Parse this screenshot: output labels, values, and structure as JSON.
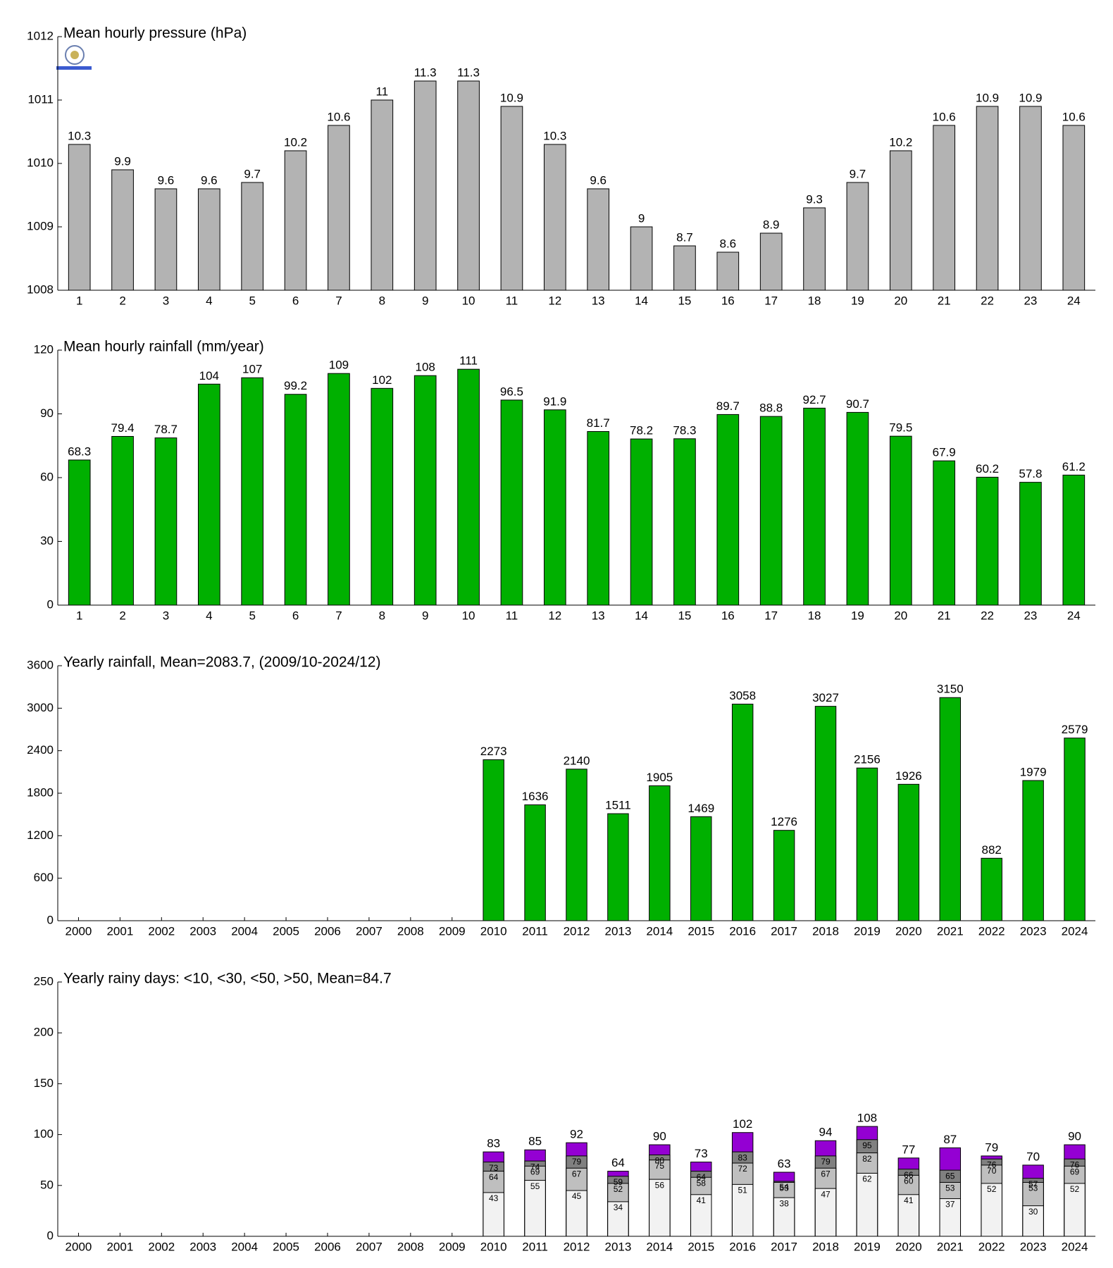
{
  "chart_data": [
    {
      "type": "bar",
      "title": "Mean hourly pressure (hPa)",
      "categories": [
        "1",
        "2",
        "3",
        "4",
        "5",
        "6",
        "7",
        "8",
        "9",
        "10",
        "11",
        "12",
        "13",
        "14",
        "15",
        "16",
        "17",
        "18",
        "19",
        "20",
        "21",
        "22",
        "23",
        "24"
      ],
      "values": [
        1010.3,
        1009.9,
        1009.6,
        1009.6,
        1009.7,
        1010.2,
        1010.6,
        1011,
        1011.3,
        1011.3,
        1010.9,
        1010.3,
        1009.6,
        1009,
        1008.7,
        1008.6,
        1008.9,
        1009.3,
        1009.7,
        1010.2,
        1010.6,
        1010.9,
        1010.9,
        1010.6
      ],
      "value_labels": [
        "10.3",
        "9.9",
        "9.6",
        "9.6",
        "9.7",
        "10.2",
        "10.6",
        "11",
        "11.3",
        "11.3",
        "10.9",
        "10.3",
        "9.6",
        "9",
        "8.7",
        "8.6",
        "8.9",
        "9.3",
        "9.7",
        "10.2",
        "10.6",
        "10.9",
        "10.9",
        "10.6"
      ],
      "color": "#b3b3b3",
      "ylim": [
        1008,
        1012
      ],
      "yticks": [
        1008,
        1009,
        1010,
        1011,
        1012
      ]
    },
    {
      "type": "bar",
      "title": "Mean hourly rainfall (mm/year)",
      "categories": [
        "1",
        "2",
        "3",
        "4",
        "5",
        "6",
        "7",
        "8",
        "9",
        "10",
        "11",
        "12",
        "13",
        "14",
        "15",
        "16",
        "17",
        "18",
        "19",
        "20",
        "21",
        "22",
        "23",
        "24"
      ],
      "values": [
        68.3,
        79.4,
        78.7,
        104,
        107,
        99.2,
        109,
        102,
        108,
        111,
        96.5,
        91.9,
        81.7,
        78.2,
        78.3,
        89.7,
        88.8,
        92.7,
        90.7,
        79.5,
        67.9,
        60.2,
        57.8,
        61.2
      ],
      "color": "#00b000",
      "ylim": [
        0,
        120
      ],
      "yticks": [
        0,
        30,
        60,
        90,
        120
      ]
    },
    {
      "type": "bar",
      "title": "Yearly rainfall, Mean=2083.7, (2009/10-2024/12)",
      "categories": [
        "2000",
        "2001",
        "2002",
        "2003",
        "2004",
        "2005",
        "2006",
        "2007",
        "2008",
        "2009",
        "2010",
        "2011",
        "2012",
        "2013",
        "2014",
        "2015",
        "2016",
        "2017",
        "2018",
        "2019",
        "2020",
        "2021",
        "2022",
        "2023",
        "2024"
      ],
      "values": [
        null,
        null,
        null,
        null,
        null,
        null,
        null,
        null,
        null,
        null,
        2273,
        1636,
        2140,
        1511,
        1905,
        1469,
        3058,
        1276,
        3027,
        2156,
        1926,
        3150,
        882,
        1979,
        2579
      ],
      "color": "#00b000",
      "ylim": [
        0,
        3600
      ],
      "yticks": [
        0,
        600,
        1200,
        1800,
        2400,
        3000,
        3600
      ]
    },
    {
      "type": "overlap_bar",
      "title": "Yearly rainy days: <10, <30, <50, >50, Mean=84.7",
      "categories": [
        "2000",
        "2001",
        "2002",
        "2003",
        "2004",
        "2005",
        "2006",
        "2007",
        "2008",
        "2009",
        "2010",
        "2011",
        "2012",
        "2013",
        "2014",
        "2015",
        "2016",
        "2017",
        "2018",
        "2019",
        "2020",
        "2021",
        "2022",
        "2023",
        "2024"
      ],
      "series": [
        {
          "color": "#f2f2f2",
          "values": [
            null,
            null,
            null,
            null,
            null,
            null,
            null,
            null,
            null,
            null,
            43,
            55,
            45,
            34,
            56,
            41,
            51,
            38,
            47,
            62,
            41,
            37,
            52,
            30,
            52
          ]
        },
        {
          "color": "#bfbfbf",
          "values": [
            null,
            null,
            null,
            null,
            null,
            null,
            null,
            null,
            null,
            null,
            64,
            69,
            67,
            52,
            75,
            58,
            72,
            53,
            67,
            82,
            60,
            53,
            70,
            53,
            69
          ]
        },
        {
          "color": "#808080",
          "values": [
            null,
            null,
            null,
            null,
            null,
            null,
            null,
            null,
            null,
            null,
            73,
            74,
            79,
            59,
            80,
            64,
            83,
            54,
            79,
            95,
            66,
            65,
            76,
            57,
            76
          ]
        },
        {
          "color": "#9400d3",
          "values": [
            null,
            null,
            null,
            null,
            null,
            null,
            null,
            null,
            null,
            null,
            83,
            85,
            92,
            64,
            90,
            73,
            102,
            63,
            94,
            108,
            77,
            87,
            79,
            70,
            90
          ]
        }
      ],
      "ylim": [
        0,
        250
      ],
      "yticks": [
        0,
        50,
        100,
        150,
        200,
        250
      ]
    }
  ]
}
